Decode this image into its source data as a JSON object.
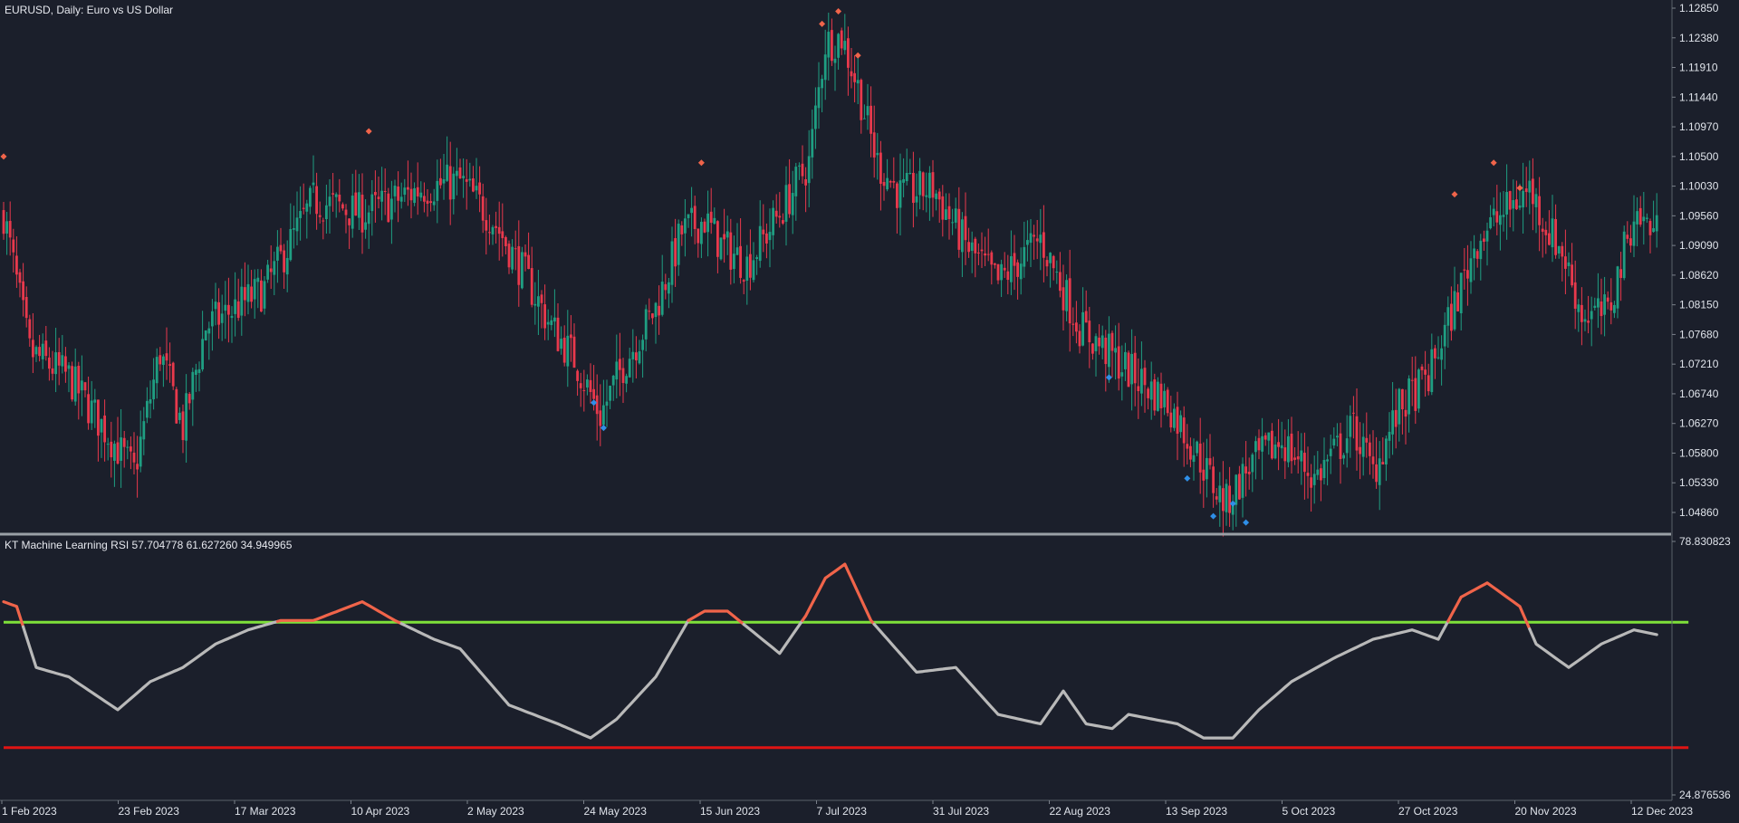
{
  "main_title": "EURUSD, Daily:  Euro vs US Dollar",
  "indicator_title": "KT Machine Learning RSI 57.704778 61.627260 34.949965",
  "price_axis": {
    "labels": [
      "1.12850",
      "1.12380",
      "1.11910",
      "1.11440",
      "1.10970",
      "1.10500",
      "1.10030",
      "1.09560",
      "1.09090",
      "1.08620",
      "1.08150",
      "1.07680",
      "1.07210",
      "1.06740",
      "1.06270",
      "1.05800",
      "1.05330",
      "1.04860"
    ]
  },
  "indicator_axis": {
    "max_label": "78.830823",
    "min_label": "24.876536"
  },
  "date_labels": [
    "1 Feb 2023",
    "23 Feb 2023",
    "17 Mar 2023",
    "10 Apr 2023",
    "2 May 2023",
    "24 May 2023",
    "15 Jun 2023",
    "7 Jul 2023",
    "31 Jul 2023",
    "22 Aug 2023",
    "13 Sep 2023",
    "5 Oct 2023",
    "27 Oct 2023",
    "20 Nov 2023",
    "12 Dec 2023"
  ],
  "colors": {
    "background": "#1b1f2b",
    "bull": "#1f9e82",
    "bear": "#e8394c",
    "sell_signal": "#f0644a",
    "buy_signal": "#2f8fe8",
    "rsi_line": "#b9b9b9",
    "upper_band": "#7ee03a",
    "lower_band": "#e01414",
    "separator": "#9aa0a6"
  },
  "chart_data": {
    "type": "candlestick",
    "symbol": "EURUSD",
    "timeframe": "Daily",
    "ylim": [
      1.046,
      1.1285
    ],
    "close_path": [
      [
        0,
        1.096
      ],
      [
        8,
        1.074
      ],
      [
        20,
        1.07
      ],
      [
        40,
        1.055
      ],
      [
        48,
        1.074
      ],
      [
        55,
        1.062
      ],
      [
        62,
        1.078
      ],
      [
        80,
        1.084
      ],
      [
        95,
        1.098
      ],
      [
        110,
        1.096
      ],
      [
        120,
        1.098
      ],
      [
        128,
        1.1
      ],
      [
        140,
        1.101
      ],
      [
        150,
        1.095
      ],
      [
        160,
        1.086
      ],
      [
        168,
        1.078
      ],
      [
        175,
        1.073
      ],
      [
        183,
        1.064
      ],
      [
        190,
        1.072
      ],
      [
        200,
        1.081
      ],
      [
        208,
        1.093
      ],
      [
        215,
        1.095
      ],
      [
        220,
        1.091
      ],
      [
        228,
        1.088
      ],
      [
        238,
        1.096
      ],
      [
        247,
        1.104
      ],
      [
        252,
        1.123
      ],
      [
        257,
        1.124
      ],
      [
        262,
        1.116
      ],
      [
        268,
        1.104
      ],
      [
        275,
        1.099
      ],
      [
        285,
        1.1
      ],
      [
        295,
        1.091
      ],
      [
        305,
        1.085
      ],
      [
        318,
        1.092
      ],
      [
        330,
        1.078
      ],
      [
        345,
        1.071
      ],
      [
        357,
        1.066
      ],
      [
        367,
        1.057
      ],
      [
        372,
        1.052
      ],
      [
        375,
        1.05
      ],
      [
        382,
        1.056
      ],
      [
        392,
        1.06
      ],
      [
        402,
        1.054
      ],
      [
        414,
        1.062
      ],
      [
        420,
        1.055
      ],
      [
        428,
        1.065
      ],
      [
        437,
        1.07
      ],
      [
        444,
        1.08
      ],
      [
        452,
        1.092
      ],
      [
        460,
        1.096
      ],
      [
        468,
        1.1
      ],
      [
        473,
        1.094
      ],
      [
        478,
        1.09
      ],
      [
        484,
        1.08
      ],
      [
        492,
        1.08
      ],
      [
        500,
        1.096
      ],
      [
        507,
        1.093
      ]
    ],
    "rsi_path": [
      [
        0,
        66.0
      ],
      [
        4,
        65.0
      ],
      [
        10,
        52.0
      ],
      [
        20,
        50.0
      ],
      [
        35,
        43.0
      ],
      [
        45,
        49.0
      ],
      [
        55,
        52.0
      ],
      [
        65,
        57.0
      ],
      [
        75,
        60.0
      ],
      [
        85,
        62.0
      ],
      [
        95,
        62.0
      ],
      [
        110,
        66.0
      ],
      [
        120,
        62.0
      ],
      [
        132,
        58.0
      ],
      [
        140,
        56.0
      ],
      [
        155,
        44.0
      ],
      [
        170,
        40.0
      ],
      [
        180,
        37.0
      ],
      [
        188,
        41.0
      ],
      [
        200,
        50.0
      ],
      [
        210,
        62.0
      ],
      [
        215,
        64.0
      ],
      [
        222,
        64.0
      ],
      [
        238,
        55.0
      ],
      [
        246,
        63.0
      ],
      [
        252,
        71.0
      ],
      [
        258,
        74.0
      ],
      [
        266,
        62.0
      ],
      [
        280,
        51.0
      ],
      [
        292,
        52.0
      ],
      [
        305,
        42.0
      ],
      [
        318,
        40.0
      ],
      [
        325,
        47.0
      ],
      [
        332,
        40.0
      ],
      [
        340,
        39.0
      ],
      [
        345,
        42.0
      ],
      [
        360,
        40.0
      ],
      [
        368,
        37.0
      ],
      [
        377,
        37.0
      ],
      [
        385,
        43.0
      ],
      [
        395,
        49.0
      ],
      [
        408,
        54.0
      ],
      [
        420,
        58.0
      ],
      [
        432,
        60.0
      ],
      [
        440,
        58.0
      ],
      [
        447,
        67.0
      ],
      [
        455,
        70.0
      ],
      [
        465,
        65.0
      ],
      [
        470,
        57.0
      ],
      [
        480,
        52.0
      ],
      [
        490,
        57.0
      ],
      [
        500,
        60.0
      ],
      [
        507,
        59.0
      ]
    ],
    "upper_band": 61.63,
    "lower_band": 34.95,
    "rsi_ylim": [
      24.876536,
      78.830823
    ],
    "sell_signals": [
      [
        0,
        1.105
      ],
      [
        112,
        1.109
      ],
      [
        214,
        1.104
      ],
      [
        251,
        1.126
      ],
      [
        256,
        1.128
      ],
      [
        262,
        1.121
      ],
      [
        445,
        1.099
      ],
      [
        457,
        1.104
      ],
      [
        465,
        1.1
      ]
    ],
    "buy_signals": [
      [
        181,
        1.066
      ],
      [
        184,
        1.062
      ],
      [
        339,
        1.07
      ],
      [
        363,
        1.054
      ],
      [
        371,
        1.048
      ],
      [
        377,
        1.05
      ],
      [
        381,
        1.047
      ]
    ]
  }
}
